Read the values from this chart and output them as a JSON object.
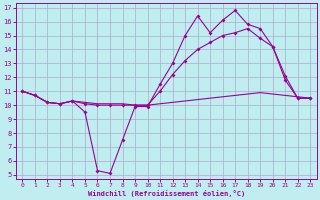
{
  "xlabel": "Windchill (Refroidissement éolien,°C)",
  "ylim": [
    5,
    17
  ],
  "xlim": [
    -0.5,
    23.5
  ],
  "yticks": [
    5,
    6,
    7,
    8,
    9,
    10,
    11,
    12,
    13,
    14,
    15,
    16,
    17
  ],
  "xticks": [
    0,
    1,
    2,
    3,
    4,
    5,
    6,
    7,
    8,
    9,
    10,
    11,
    12,
    13,
    14,
    15,
    16,
    17,
    18,
    19,
    20,
    21,
    22,
    23
  ],
  "background_color": "#c0eef0",
  "line_color": "#990099",
  "grid_color": "#aaaacc",
  "line1_x": [
    0,
    1,
    2,
    3,
    4,
    5,
    6,
    7,
    8,
    9,
    10,
    11,
    12,
    13,
    14,
    15,
    16,
    17,
    18,
    19,
    20,
    21,
    22,
    23
  ],
  "line1_y": [
    11,
    10.7,
    10.2,
    10.1,
    10.3,
    9.5,
    5.3,
    5.1,
    7.5,
    9.9,
    9.9,
    11.5,
    13.0,
    15.0,
    16.4,
    15.2,
    16.1,
    16.8,
    15.8,
    15.5,
    14.2,
    12.1,
    10.5,
    10.5
  ],
  "line2_x": [
    0,
    1,
    2,
    3,
    4,
    5,
    6,
    7,
    8,
    9,
    10,
    11,
    12,
    13,
    14,
    15,
    16,
    17,
    18,
    19,
    20,
    21,
    22,
    23
  ],
  "line2_y": [
    11,
    10.7,
    10.2,
    10.1,
    10.3,
    10.1,
    10.0,
    10.0,
    10.0,
    10.0,
    10.0,
    11.0,
    12.2,
    13.2,
    14.0,
    14.5,
    15.0,
    15.2,
    15.5,
    14.8,
    14.2,
    11.8,
    10.5,
    10.5
  ],
  "line3_x": [
    0,
    1,
    2,
    3,
    4,
    5,
    6,
    7,
    8,
    9,
    10,
    11,
    12,
    13,
    14,
    15,
    16,
    17,
    18,
    19,
    20,
    21,
    22,
    23
  ],
  "line3_y": [
    11,
    10.7,
    10.2,
    10.1,
    10.3,
    10.2,
    10.1,
    10.1,
    10.1,
    10.0,
    10.0,
    10.1,
    10.2,
    10.3,
    10.4,
    10.5,
    10.6,
    10.7,
    10.8,
    10.9,
    10.8,
    10.7,
    10.6,
    10.5
  ]
}
